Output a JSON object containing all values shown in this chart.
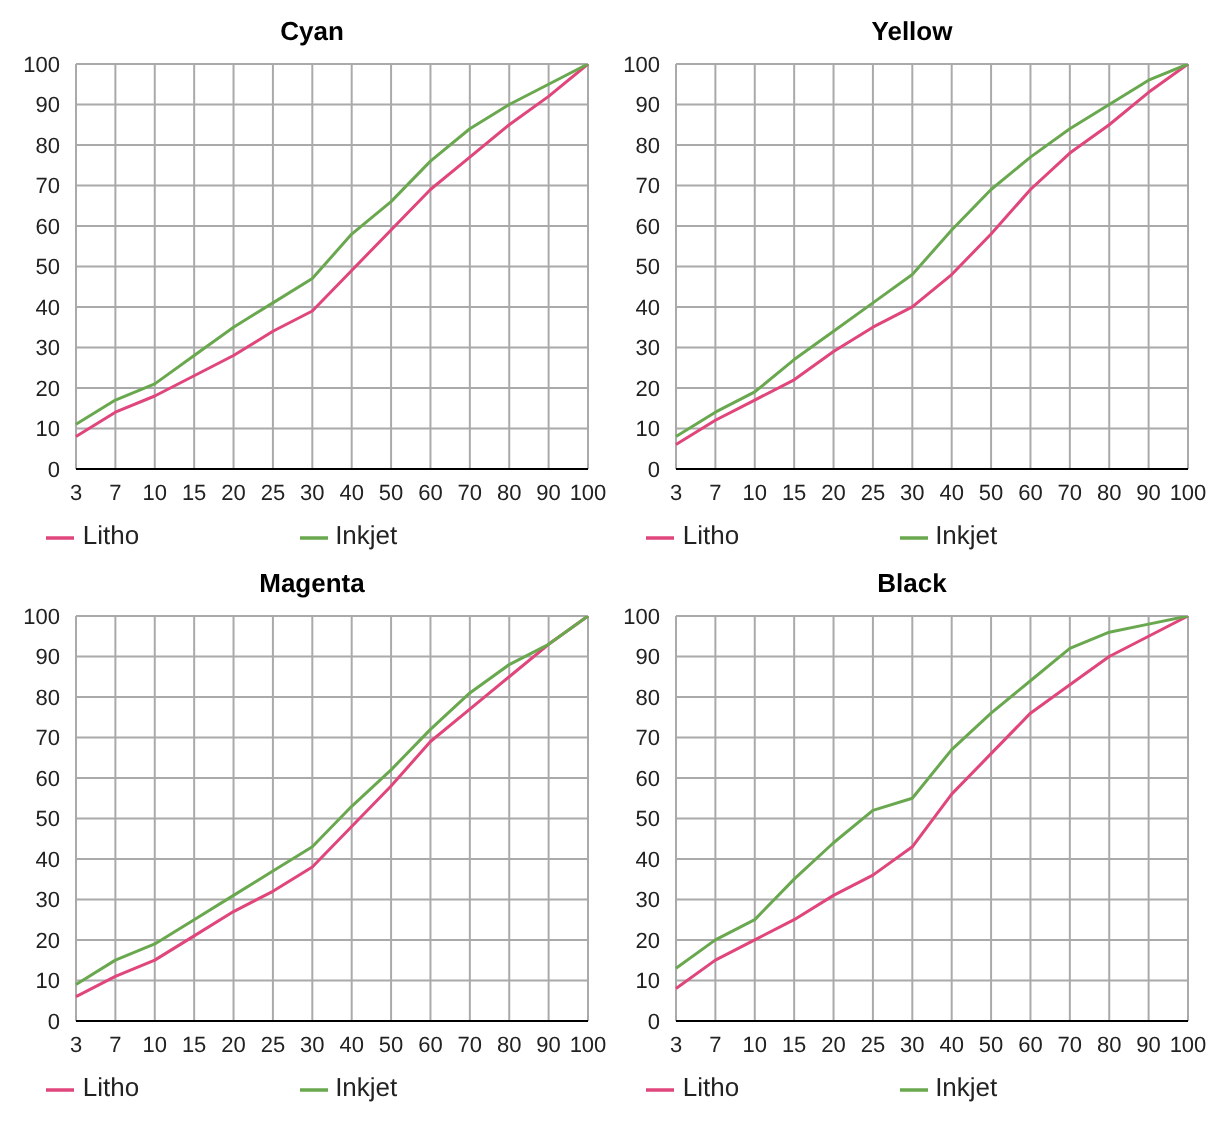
{
  "chart_data": [
    {
      "type": "line",
      "title": "Cyan",
      "categories": [
        "3",
        "7",
        "10",
        "15",
        "20",
        "25",
        "30",
        "40",
        "50",
        "60",
        "70",
        "80",
        "90",
        "100"
      ],
      "ylim": [
        0,
        100
      ],
      "yticks": [
        0,
        10,
        20,
        30,
        40,
        50,
        60,
        70,
        80,
        90,
        100
      ],
      "grid": true,
      "legend": "bottom",
      "marker": "none",
      "series": [
        {
          "name": "Litho",
          "color": "#e0457b",
          "values": [
            8,
            14,
            18,
            23,
            28,
            34,
            39,
            49,
            59,
            69,
            77,
            85,
            92,
            100
          ]
        },
        {
          "name": "Inkjet",
          "color": "#6aa84f",
          "values": [
            11,
            17,
            21,
            28,
            35,
            41,
            47,
            58,
            66,
            76,
            84,
            90,
            95,
            100
          ]
        }
      ]
    },
    {
      "type": "line",
      "title": "Yellow",
      "categories": [
        "3",
        "7",
        "10",
        "15",
        "20",
        "25",
        "30",
        "40",
        "50",
        "60",
        "70",
        "80",
        "90",
        "100"
      ],
      "ylim": [
        0,
        100
      ],
      "yticks": [
        0,
        10,
        20,
        30,
        40,
        50,
        60,
        70,
        80,
        90,
        100
      ],
      "grid": true,
      "legend": "bottom",
      "marker": "none",
      "series": [
        {
          "name": "Litho",
          "color": "#e0457b",
          "values": [
            6,
            12,
            17,
            22,
            29,
            35,
            40,
            48,
            58,
            69,
            78,
            85,
            93,
            100
          ]
        },
        {
          "name": "Inkjet",
          "color": "#6aa84f",
          "values": [
            8,
            14,
            19,
            27,
            34,
            41,
            48,
            59,
            69,
            77,
            84,
            90,
            96,
            100
          ]
        }
      ]
    },
    {
      "type": "line",
      "title": "Magenta",
      "categories": [
        "3",
        "7",
        "10",
        "15",
        "20",
        "25",
        "30",
        "40",
        "50",
        "60",
        "70",
        "80",
        "90",
        "100"
      ],
      "ylim": [
        0,
        100
      ],
      "yticks": [
        0,
        10,
        20,
        30,
        40,
        50,
        60,
        70,
        80,
        90,
        100
      ],
      "grid": true,
      "legend": "bottom",
      "marker": "none",
      "series": [
        {
          "name": "Litho",
          "color": "#e0457b",
          "values": [
            6,
            11,
            15,
            21,
            27,
            32,
            38,
            48,
            58,
            69,
            77,
            85,
            93,
            100
          ]
        },
        {
          "name": "Inkjet",
          "color": "#6aa84f",
          "values": [
            9,
            15,
            19,
            25,
            31,
            37,
            43,
            53,
            62,
            72,
            81,
            88,
            93,
            100
          ]
        }
      ]
    },
    {
      "type": "line",
      "title": "Black",
      "categories": [
        "3",
        "7",
        "10",
        "15",
        "20",
        "25",
        "30",
        "40",
        "50",
        "60",
        "70",
        "80",
        "90",
        "100"
      ],
      "ylim": [
        0,
        100
      ],
      "yticks": [
        0,
        10,
        20,
        30,
        40,
        50,
        60,
        70,
        80,
        90,
        100
      ],
      "grid": true,
      "legend": "bottom",
      "marker": "none",
      "series": [
        {
          "name": "Litho",
          "color": "#e0457b",
          "values": [
            8,
            15,
            20,
            25,
            31,
            36,
            43,
            56,
            66,
            76,
            83,
            90,
            95,
            100
          ]
        },
        {
          "name": "Inkjet",
          "color": "#6aa84f",
          "values": [
            13,
            20,
            25,
            35,
            44,
            52,
            55,
            67,
            76,
            84,
            92,
            96,
            98,
            100
          ]
        }
      ]
    }
  ]
}
